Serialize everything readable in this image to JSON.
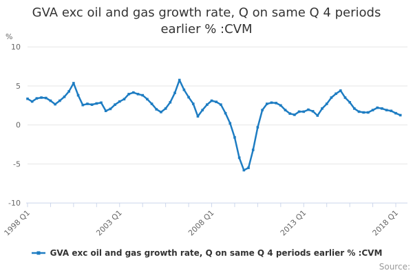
{
  "title": {
    "line1": "GVA exc oil and gas growth rate, Q on same Q 4 periods",
    "line2": "earlier % :CVM"
  },
  "y_axis": {
    "unit": "%"
  },
  "legend": {
    "label": "GVA exc oil and gas growth rate, Q on same Q 4 periods earlier % :CVM"
  },
  "source_label": "Source:",
  "colors": {
    "line": "#1d7cc2",
    "grid": "#e6e6e6",
    "axis": "#ccd6eb",
    "tick_text": "#666666",
    "title_text": "#333333",
    "source_text": "#999999"
  },
  "chart_data": {
    "type": "line",
    "title": "GVA exc oil and gas growth rate, Q on same Q 4 periods earlier % :CVM",
    "xlabel": "",
    "ylabel": "%",
    "ylim": [
      -10,
      10
    ],
    "y_ticks": [
      10,
      5,
      0,
      -5,
      -10
    ],
    "y_tick_labels": [
      "10",
      "5",
      "0",
      "-5",
      "-10"
    ],
    "x_tick_labels": [
      "1998 Q1",
      "2003 Q1",
      "2008 Q1",
      "2013 Q1",
      "2018 Q1"
    ],
    "x_tick_positions": [
      0,
      20,
      40,
      60,
      80
    ],
    "minor_tick_step": 5,
    "grid": "horizontal",
    "legend_position": "bottom-center",
    "x_start": "1998 Q1",
    "x_end": "2018 Q2",
    "points_per_year": 4,
    "series": [
      {
        "name": "GVA exc oil and gas growth rate, Q on same Q 4 periods earlier % :CVM",
        "values": [
          3.35,
          3.0,
          3.4,
          3.5,
          3.45,
          3.1,
          2.65,
          3.1,
          3.6,
          4.3,
          5.35,
          3.8,
          2.55,
          2.7,
          2.6,
          2.75,
          2.85,
          1.8,
          2.05,
          2.6,
          3.0,
          3.3,
          3.95,
          4.15,
          3.95,
          3.8,
          3.3,
          2.7,
          2.0,
          1.65,
          2.1,
          2.9,
          4.1,
          5.75,
          4.5,
          3.55,
          2.7,
          1.1,
          1.9,
          2.6,
          3.1,
          2.95,
          2.6,
          1.5,
          0.2,
          -1.6,
          -4.2,
          -5.8,
          -5.5,
          -3.2,
          -0.3,
          1.9,
          2.7,
          2.85,
          2.8,
          2.5,
          1.9,
          1.45,
          1.3,
          1.7,
          1.7,
          1.95,
          1.75,
          1.2,
          2.1,
          2.7,
          3.5,
          4.0,
          4.4,
          3.5,
          2.9,
          2.1,
          1.7,
          1.6,
          1.6,
          1.9,
          2.2,
          2.1,
          1.9,
          1.8,
          1.5,
          1.25
        ]
      }
    ]
  }
}
